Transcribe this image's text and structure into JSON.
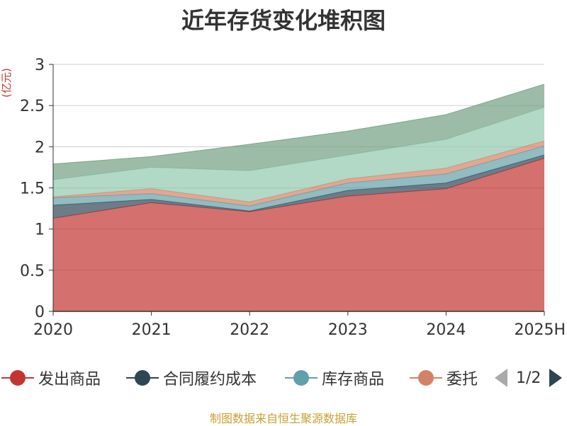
{
  "title": "近年存货变化堆积图",
  "source": "制图数据来自恒生聚源数据库",
  "chart_data": {
    "type": "area",
    "stacked": true,
    "title": "近年存货变化堆积图",
    "ylabel": "(亿元)",
    "xlabel": "",
    "categories": [
      "2020",
      "2021",
      "2022",
      "2023",
      "2024",
      "2025H"
    ],
    "ylim": [
      0,
      3
    ],
    "yticks": [
      0,
      0.5,
      1,
      1.5,
      2,
      2.5,
      3
    ],
    "ytick_labels": [
      "0",
      "0.5",
      "1",
      "1.5",
      "2",
      "2.5",
      "3"
    ],
    "grid": true,
    "series": [
      {
        "name": "发出商品",
        "color": "#c23531",
        "values": [
          1.13,
          1.32,
          1.21,
          1.4,
          1.49,
          1.86
        ]
      },
      {
        "name": "合同履约成本",
        "color": "#2f4554",
        "values": [
          0.16,
          0.04,
          0.01,
          0.07,
          0.07,
          0.04
        ]
      },
      {
        "color": "#61a0a8",
        "values": [
          0.09,
          0.07,
          0.06,
          0.09,
          0.11,
          0.11
        ]
      },
      {
        "color": "#d48265",
        "values": [
          0.01,
          0.06,
          0.05,
          0.05,
          0.07,
          0.06
        ]
      },
      {
        "color": "#91c7ae",
        "values": [
          0.21,
          0.26,
          0.38,
          0.29,
          0.35,
          0.41
        ]
      },
      {
        "color": "#749f83",
        "values": [
          0.19,
          0.13,
          0.32,
          0.29,
          0.3,
          0.28
        ]
      }
    ]
  },
  "legend": {
    "items": [
      {
        "label": "发出商品",
        "color": "#c23531"
      },
      {
        "label": "合同履约成本",
        "color": "#2f4554"
      },
      {
        "label": "库存商品",
        "color": "#61a0a8"
      },
      {
        "label": "委托",
        "color": "#d48265"
      }
    ],
    "page_text": "1/2"
  }
}
